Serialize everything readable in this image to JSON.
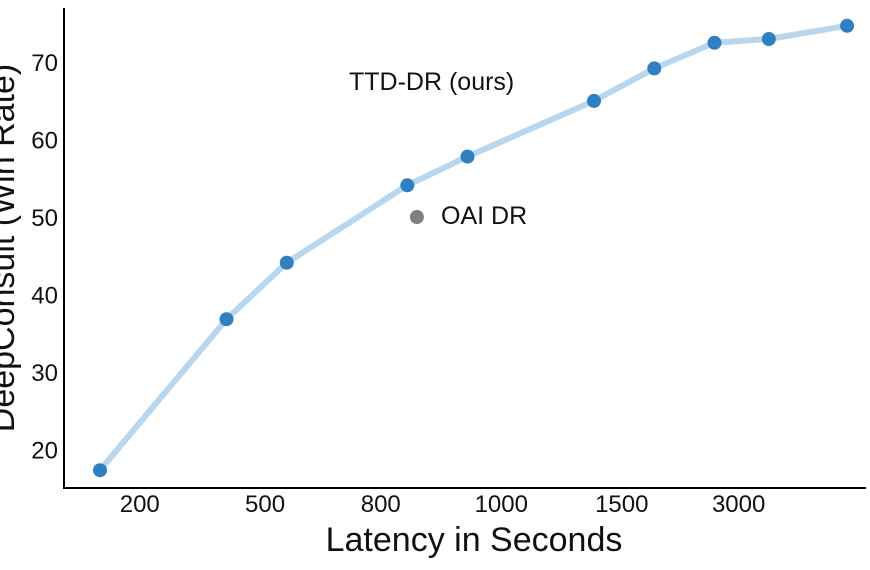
{
  "chart_data": {
    "type": "line",
    "xlabel": "Latency in Seconds",
    "ylabel": "DeepConsult (Win Rate)",
    "x_scale": "categorical-ordinal",
    "x_tick_labels": [
      "200",
      "500",
      "800",
      "1000",
      "1500",
      "3000"
    ],
    "y_ticks": [
      20,
      30,
      40,
      50,
      60,
      70
    ],
    "ylim": [
      15,
      77
    ],
    "grid": false,
    "series": [
      {
        "name": "TTD-DR (ours)",
        "color": "#2f7fc1",
        "line_color": "#b8d6ee",
        "points": [
          {
            "x_pos": 0.0,
            "y": 17.3
          },
          {
            "x_pos": 1.05,
            "y": 36.8
          },
          {
            "x_pos": 1.55,
            "y": 44.1
          },
          {
            "x_pos": 2.55,
            "y": 54.1
          },
          {
            "x_pos": 3.05,
            "y": 57.8
          },
          {
            "x_pos": 4.1,
            "y": 65.0
          },
          {
            "x_pos": 4.6,
            "y": 69.2
          },
          {
            "x_pos": 5.1,
            "y": 72.5
          },
          {
            "x_pos": 5.55,
            "y": 73.0
          },
          {
            "x_pos": 6.2,
            "y": 74.7
          }
        ]
      },
      {
        "name": "OAI DR",
        "color": "#808080",
        "points": [
          {
            "x_pos": 2.63,
            "y": 50.0
          }
        ]
      }
    ],
    "annotations": [
      "TTD-DR (ours)",
      "OAI DR"
    ]
  }
}
